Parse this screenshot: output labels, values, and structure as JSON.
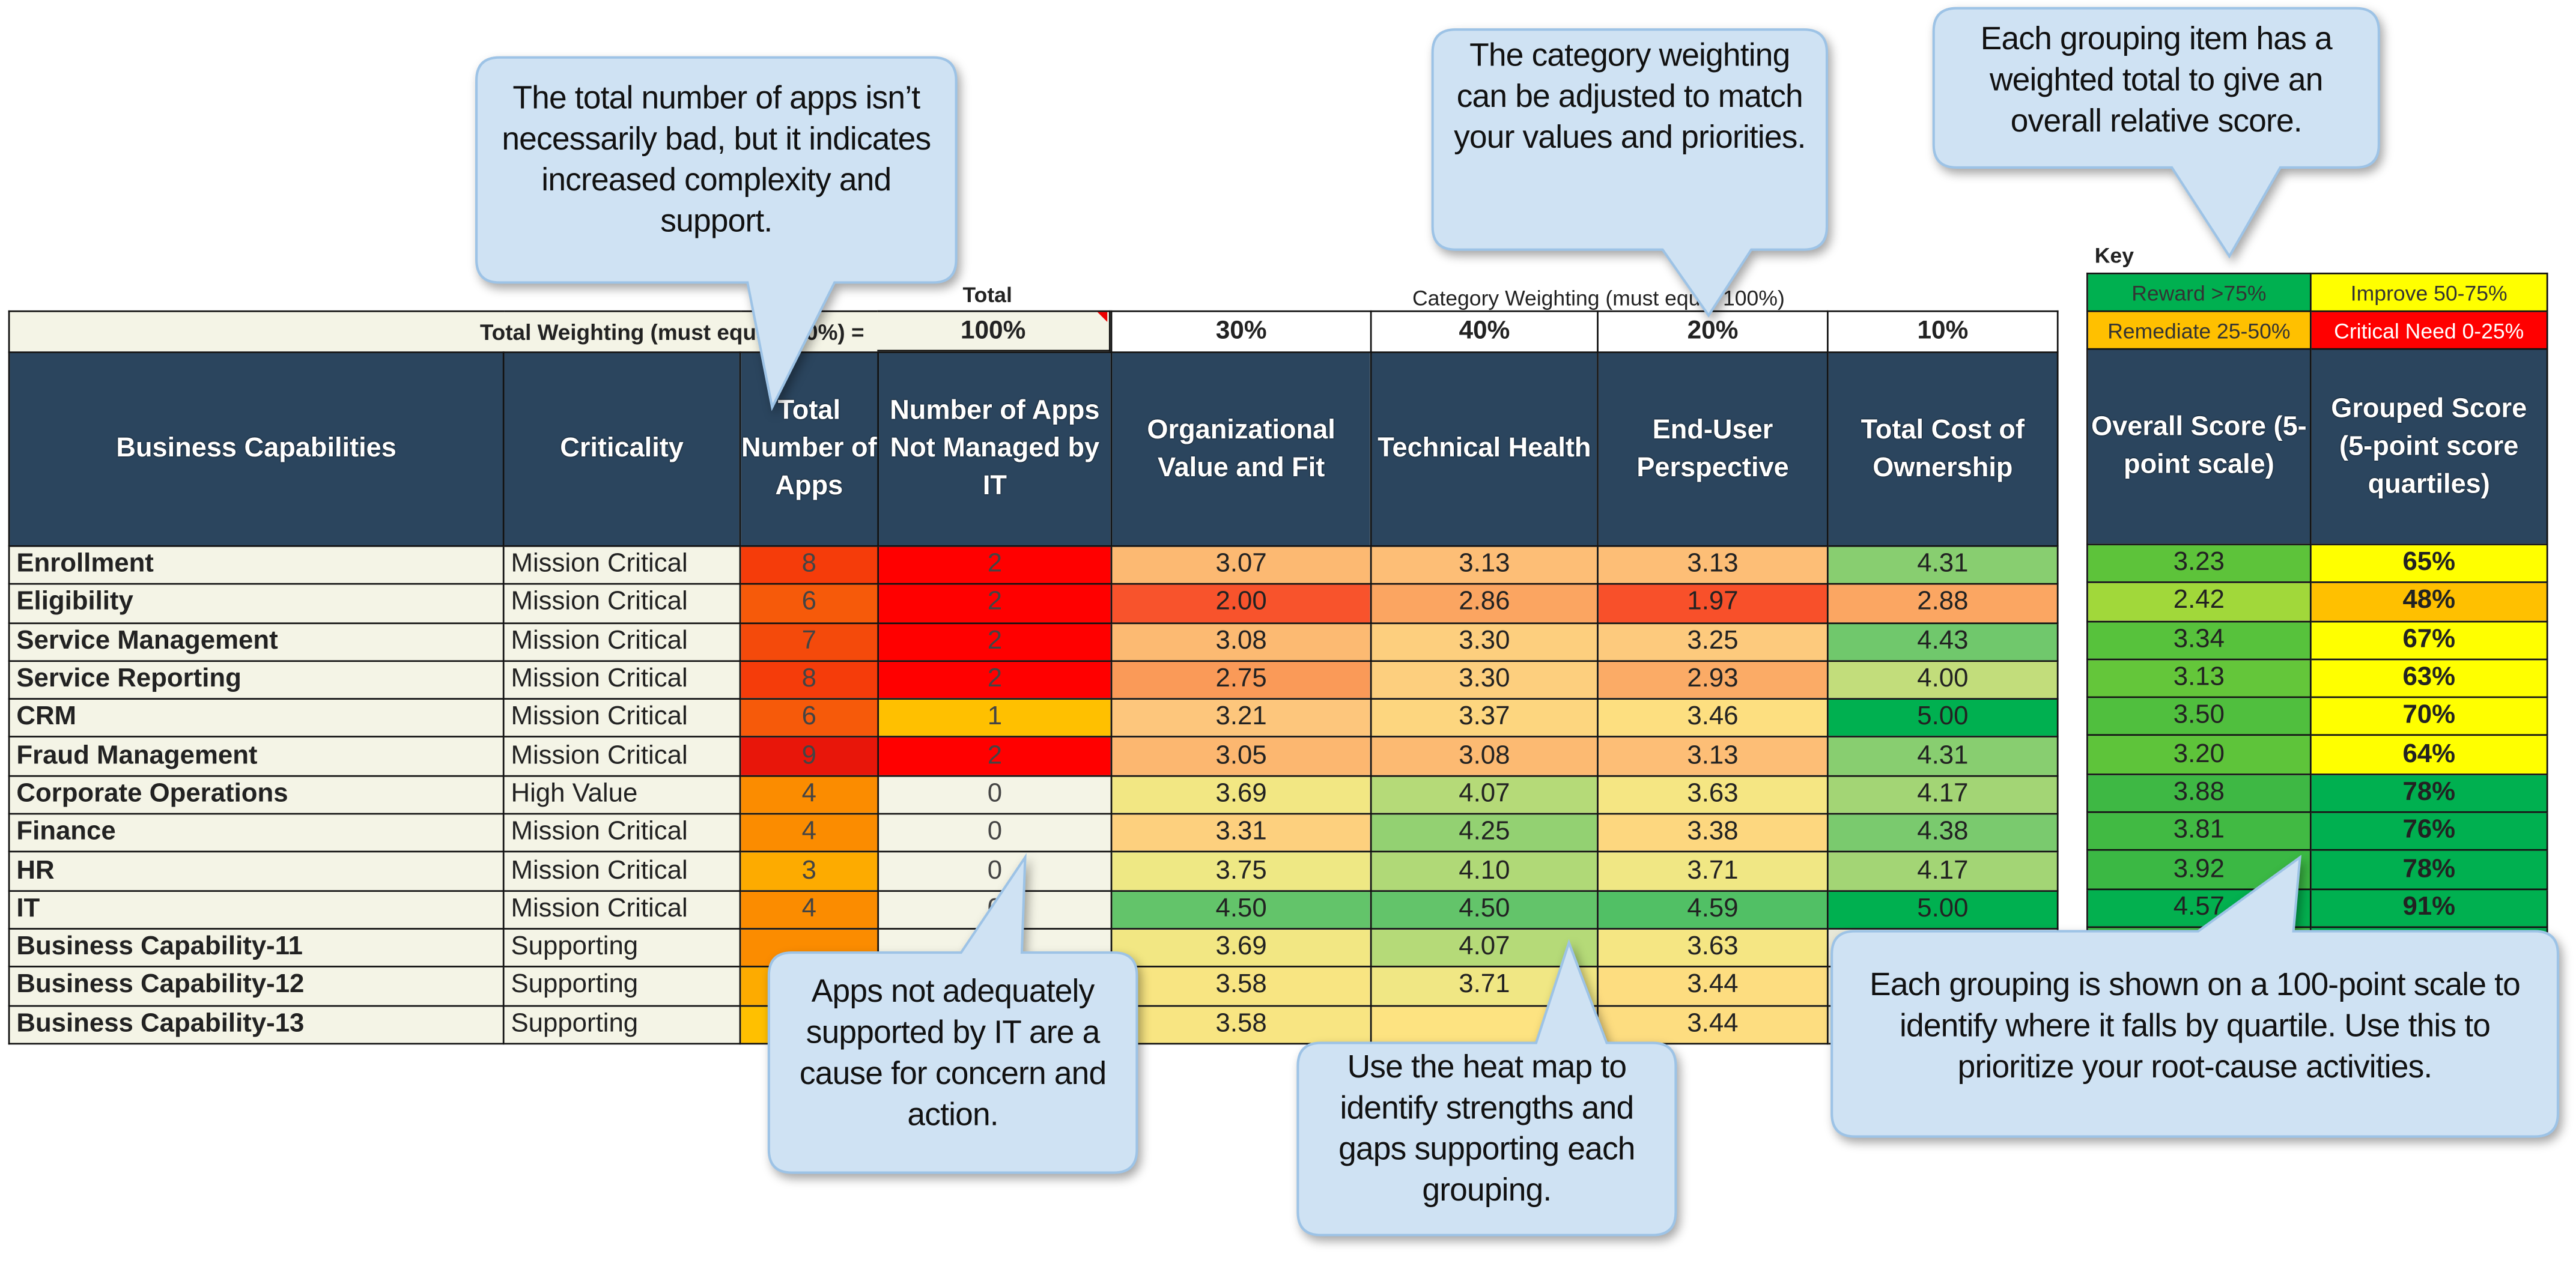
{
  "weighting": {
    "total_caption": "Total",
    "category_caption": "Category Weighting (must equal 100%)",
    "label": "Total Weighting (must equal 100%) =",
    "total": "100%",
    "categories": [
      "30%",
      "40%",
      "20%",
      "10%"
    ]
  },
  "headers": {
    "business_capabilities": "Business Capabilities",
    "criticality": "Criticality",
    "total_apps": "Total Number of Apps",
    "not_managed": "Number of Apps Not Managed by IT",
    "org_value": "Organizational Value and Fit",
    "tech_health": "Technical Health",
    "end_user": "End-User Perspective",
    "tco": "Total Cost of Ownership",
    "overall": "Overall Score (5-point scale)",
    "grouped": "Grouped Score (5-point score quartiles)"
  },
  "key": {
    "title": "Key",
    "items": [
      {
        "label": "Reward >75%",
        "color": "#00b050",
        "text_color": "#333333"
      },
      {
        "label": "Improve 50-75%",
        "color": "#ffff00",
        "text_color": "#333333"
      },
      {
        "label": "Remediate 25-50%",
        "color": "#ffc000",
        "text_color": "#333333"
      },
      {
        "label": "Critical Need 0-25%",
        "color": "#ff0000",
        "text_color": "#ffffff"
      }
    ]
  },
  "colors": {
    "header_bg": "#2b455e",
    "label_bg": "#f4f4e6",
    "callout_fill": "#cfe2f3",
    "callout_border": "#9dc3e6"
  },
  "rows": [
    {
      "name": "Enrollment",
      "criticality": "Mission Critical",
      "total_apps": "8",
      "apps_color": "#f53c0a",
      "not_managed": "2",
      "nm_color": "#ff0000",
      "org": "3.07",
      "tech": "3.13",
      "user": "3.13",
      "tco": "4.31",
      "overall": "3.23",
      "grouped": "65%"
    },
    {
      "name": "Eligibility",
      "criticality": "Mission Critical",
      "total_apps": "6",
      "apps_color": "#f65a0a",
      "not_managed": "2",
      "nm_color": "#ff0000",
      "org": "2.00",
      "tech": "2.86",
      "user": "1.97",
      "tco": "2.88",
      "overall": "2.42",
      "grouped": "48%"
    },
    {
      "name": "Service Management",
      "criticality": "Mission Critical",
      "total_apps": "7",
      "apps_color": "#f44a0b",
      "not_managed": "2",
      "nm_color": "#ff0000",
      "org": "3.08",
      "tech": "3.30",
      "user": "3.25",
      "tco": "4.43",
      "overall": "3.34",
      "grouped": "67%"
    },
    {
      "name": "Service Reporting",
      "criticality": "Mission Critical",
      "total_apps": "8",
      "apps_color": "#f53c0a",
      "not_managed": "2",
      "nm_color": "#ff0000",
      "org": "2.75",
      "tech": "3.30",
      "user": "2.93",
      "tco": "4.00",
      "overall": "3.13",
      "grouped": "63%"
    },
    {
      "name": "CRM",
      "criticality": "Mission Critical",
      "total_apps": "6",
      "apps_color": "#f65a0a",
      "not_managed": "1",
      "nm_color": "#ffc000",
      "org": "3.21",
      "tech": "3.37",
      "user": "3.46",
      "tco": "5.00",
      "overall": "3.50",
      "grouped": "70%"
    },
    {
      "name": "Fraud Management",
      "criticality": "Mission Critical",
      "total_apps": "9",
      "apps_color": "#e8160a",
      "not_managed": "2",
      "nm_color": "#ff0000",
      "org": "3.05",
      "tech": "3.08",
      "user": "3.13",
      "tco": "4.31",
      "overall": "3.20",
      "grouped": "64%"
    },
    {
      "name": "Corporate Operations",
      "criticality": "High Value",
      "total_apps": "4",
      "apps_color": "#fb8c00",
      "not_managed": "0",
      "nm_color": "#f4f4e6",
      "org": "3.69",
      "tech": "4.07",
      "user": "3.63",
      "tco": "4.17",
      "overall": "3.88",
      "grouped": "78%"
    },
    {
      "name": "Finance",
      "criticality": "Mission Critical",
      "total_apps": "4",
      "apps_color": "#fb8c00",
      "not_managed": "0",
      "nm_color": "#f4f4e6",
      "org": "3.31",
      "tech": "4.25",
      "user": "3.38",
      "tco": "4.38",
      "overall": "3.81",
      "grouped": "76%"
    },
    {
      "name": "HR",
      "criticality": "Mission Critical",
      "total_apps": "3",
      "apps_color": "#fdab00",
      "not_managed": "0",
      "nm_color": "#f4f4e6",
      "org": "3.75",
      "tech": "4.10",
      "user": "3.71",
      "tco": "4.17",
      "overall": "3.92",
      "grouped": "78%"
    },
    {
      "name": "IT",
      "criticality": "Mission Critical",
      "total_apps": "4",
      "apps_color": "#fb8c00",
      "not_managed": "0",
      "nm_color": "#f4f4e6",
      "org": "4.50",
      "tech": "4.50",
      "user": "4.59",
      "tco": "5.00",
      "overall": "4.57",
      "grouped": "91%"
    },
    {
      "name": "Business Capability-11",
      "criticality": "Supporting",
      "total_apps": null,
      "apps_color": "#fb8c00",
      "not_managed": null,
      "nm_color": "#f4f4e6",
      "org": "3.69",
      "tech": "4.07",
      "user": "3.63",
      "tco": null,
      "overall": null,
      "grouped": null
    },
    {
      "name": "Business Capability-12",
      "criticality": "Supporting",
      "total_apps": null,
      "apps_color": "#fdab00",
      "not_managed": null,
      "nm_color": "#f4f4e6",
      "org": "3.58",
      "tech": "3.71",
      "user": "3.44",
      "tco": null,
      "overall": null,
      "grouped": null
    },
    {
      "name": "Business Capability-13",
      "criticality": "Supporting",
      "total_apps": null,
      "apps_color": "#ffc000",
      "not_managed": null,
      "nm_color": "#f4f4e6",
      "org": "3.58",
      "tech": null,
      "user": "3.44",
      "tco": null,
      "overall": null,
      "grouped": null
    }
  ],
  "callouts": [
    {
      "id": "total-apps",
      "text": "The total number of apps isn’t necessarily bad, but it indicates increased complexity and support."
    },
    {
      "id": "category-weighting",
      "text": "The category weighting can be adjusted to match your values and priorities."
    },
    {
      "id": "weighted-total",
      "text": "Each grouping item has a weighted total to give an overall relative score."
    },
    {
      "id": "not-managed",
      "text": "Apps not adequately supported by IT are a cause for concern and action."
    },
    {
      "id": "heat-map",
      "text": "Use the heat map to identify strengths and gaps supporting each grouping."
    },
    {
      "id": "quartile",
      "text": "Each grouping is shown on a 100-point scale to identify where it falls by quartile. Use this to prioritize your root-cause activities."
    }
  ]
}
